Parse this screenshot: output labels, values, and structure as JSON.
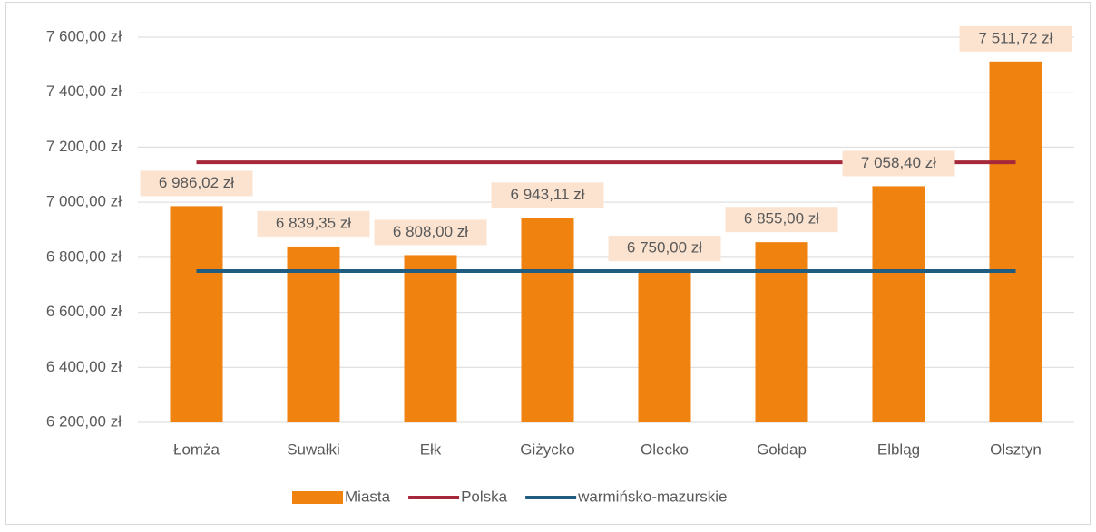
{
  "chart_data": {
    "type": "bar",
    "categories": [
      "Łomża",
      "Suwałki",
      "Ełk",
      "Giżycko",
      "Olecko",
      "Gołdap",
      "Elbląg",
      "Olsztyn"
    ],
    "series": [
      {
        "name": "Miasta",
        "type": "bar",
        "color": "#f0820f",
        "values": [
          6986.02,
          6839.35,
          6808.0,
          6943.11,
          6750.0,
          6855.0,
          7058.4,
          7511.72
        ],
        "value_labels": [
          "6 986,02 zł",
          "6 839,35 zł",
          "6 808,00 zł",
          "6 943,11 zł",
          "6 750,00 zł",
          "6 855,00 zł",
          "7 058,40 zł",
          "7 511,72 zł"
        ]
      },
      {
        "name": "Polska",
        "type": "line",
        "color": "#a5283a",
        "values": [
          7145,
          7145,
          7145,
          7145,
          7145,
          7145,
          7145,
          7145
        ]
      },
      {
        "name": "warmińsko-mazurskie",
        "type": "line",
        "color": "#1f5c80",
        "values": [
          6750,
          6750,
          6750,
          6750,
          6750,
          6750,
          6750,
          6750
        ]
      }
    ],
    "ylim": [
      6200,
      7600
    ],
    "yticks": [
      {
        "value": 6200,
        "label": "6 200,00 zł"
      },
      {
        "value": 6400,
        "label": "6 400,00 zł"
      },
      {
        "value": 6600,
        "label": "6 600,00 zł"
      },
      {
        "value": 6800,
        "label": "6 800,00 zł"
      },
      {
        "value": 7000,
        "label": "7 000,00 zł"
      },
      {
        "value": 7200,
        "label": "7 200,00 zł"
      },
      {
        "value": 7400,
        "label": "7 400,00 zł"
      },
      {
        "value": 7600,
        "label": "7 600,00 zł"
      }
    ],
    "grid": true,
    "legend": "bottom"
  }
}
